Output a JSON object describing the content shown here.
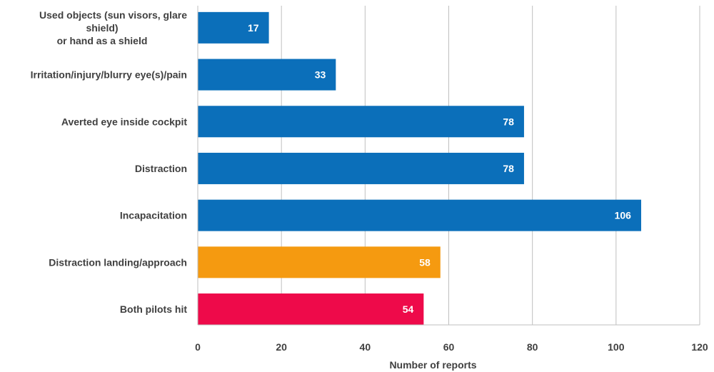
{
  "chart_data": {
    "type": "bar",
    "orientation": "horizontal",
    "categories": [
      [
        "Used objects (sun visors, glare",
        "shield)",
        "or hand as a shield"
      ],
      [
        "Irritation/injury/blurry eye(s)/pain"
      ],
      [
        "Averted eye inside cockpit"
      ],
      [
        "Distraction"
      ],
      [
        "Incapacitation"
      ],
      [
        "Distraction landing/approach"
      ],
      [
        "Both pilots hit"
      ]
    ],
    "values": [
      17,
      33,
      78,
      78,
      106,
      58,
      54
    ],
    "bar_colors": [
      "#0b6fba",
      "#0b6fba",
      "#0b6fba",
      "#0b6fba",
      "#0b6fba",
      "#f59a10",
      "#ee0a4a"
    ],
    "xlabel": "Number of reports",
    "xlim": [
      0,
      120
    ],
    "xticks": [
      0,
      20,
      40,
      60,
      80,
      100,
      120
    ],
    "grid": "vertical",
    "data_labels": true
  }
}
